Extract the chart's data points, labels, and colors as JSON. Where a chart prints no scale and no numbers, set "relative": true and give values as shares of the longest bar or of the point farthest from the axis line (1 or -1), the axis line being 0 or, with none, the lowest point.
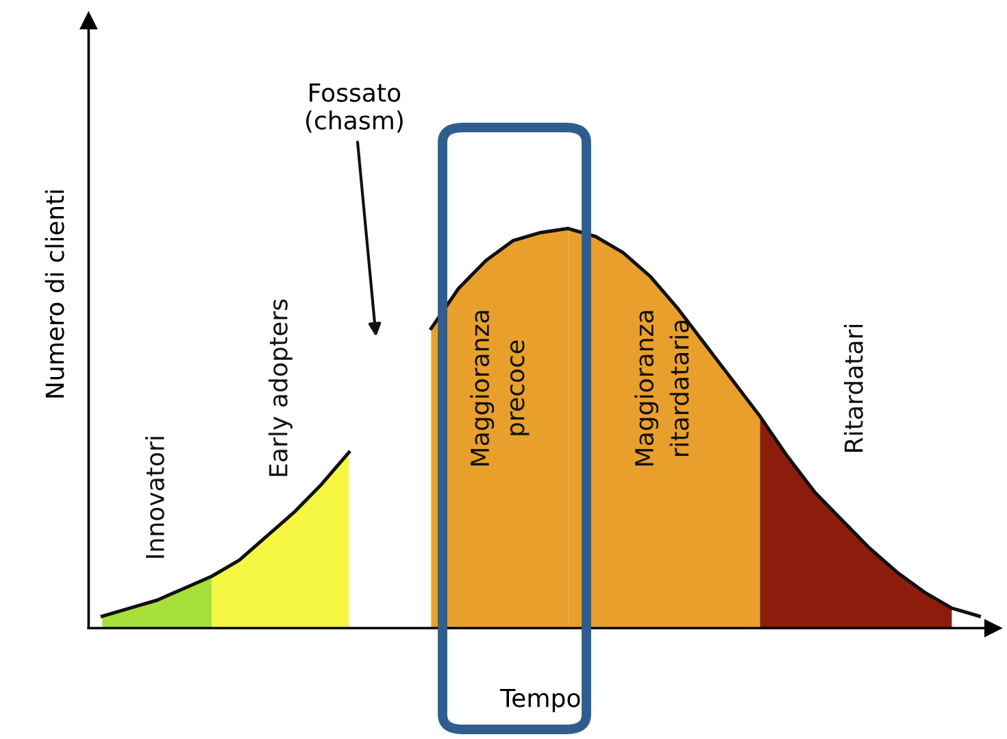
{
  "chart_data": {
    "type": "area",
    "relative": true,
    "xlabel": "Tempo",
    "ylabel": "Numero di clienti",
    "annotations": [
      "Fossato\n(chasm)"
    ],
    "categories": [
      null,
      null,
      null,
      null,
      null,
      null,
      null,
      null,
      null,
      null,
      null,
      null,
      null,
      null,
      null,
      null,
      null,
      null,
      null,
      null,
      null,
      null,
      null,
      null,
      null,
      null,
      null,
      null,
      null,
      null,
      null,
      null,
      null
    ],
    "series": [
      {
        "name": "Innovatori",
        "color": "#a8e03a",
        "values": [
          0.03,
          0.05,
          0.07,
          0.1,
          0.13,
          null,
          null,
          null,
          null,
          null,
          null,
          null,
          null,
          null,
          null,
          null,
          null,
          null,
          null,
          null,
          null,
          null,
          null,
          null,
          null,
          null,
          null,
          null,
          null,
          null,
          null,
          null,
          null
        ]
      },
      {
        "name": "Early adopters",
        "color": "#f6f742",
        "values": [
          null,
          null,
          null,
          null,
          0.13,
          0.17,
          0.23,
          0.29,
          0.36,
          0.44,
          null,
          null,
          null,
          null,
          null,
          null,
          null,
          null,
          null,
          null,
          null,
          null,
          null,
          null,
          null,
          null,
          null,
          null,
          null,
          null,
          null,
          null,
          null
        ]
      },
      {
        "name": "Maggioranza\nprecoce",
        "color": "#e89f2c",
        "values": [
          null,
          null,
          null,
          null,
          null,
          null,
          null,
          null,
          null,
          null,
          null,
          null,
          0.75,
          0.85,
          0.92,
          0.97,
          0.99,
          1.0,
          null,
          null,
          null,
          null,
          null,
          null,
          null,
          null,
          null,
          null,
          null,
          null,
          null,
          null,
          null
        ]
      },
      {
        "name": "Maggioranza\nritardataria",
        "color": "#e89f2c",
        "values": [
          null,
          null,
          null,
          null,
          null,
          null,
          null,
          null,
          null,
          null,
          null,
          null,
          null,
          null,
          null,
          null,
          null,
          1.0,
          0.98,
          0.94,
          0.88,
          0.8,
          0.71,
          0.62,
          0.53,
          null,
          null,
          null,
          null,
          null,
          null,
          null,
          null
        ]
      },
      {
        "name": "Ritardatari",
        "color": "#8c1d0c",
        "values": [
          null,
          null,
          null,
          null,
          null,
          null,
          null,
          null,
          null,
          null,
          null,
          null,
          null,
          null,
          null,
          null,
          null,
          null,
          null,
          null,
          null,
          null,
          null,
          null,
          0.53,
          0.43,
          0.34,
          0.27,
          0.2,
          0.14,
          0.09,
          0.05,
          null
        ]
      },
      {
        "type": "line",
        "color": "#111111",
        "values": [
          0.03,
          0.05,
          0.07,
          0.1,
          0.13,
          0.17,
          0.23,
          0.29,
          0.36,
          0.44,
          null,
          null,
          0.75,
          0.85,
          0.92,
          0.97,
          0.99,
          1.0,
          0.98,
          0.94,
          0.88,
          0.8,
          0.71,
          0.62,
          0.53,
          0.43,
          0.34,
          0.27,
          0.2,
          0.14,
          0.09,
          0.05,
          0.03
        ]
      }
    ]
  }
}
